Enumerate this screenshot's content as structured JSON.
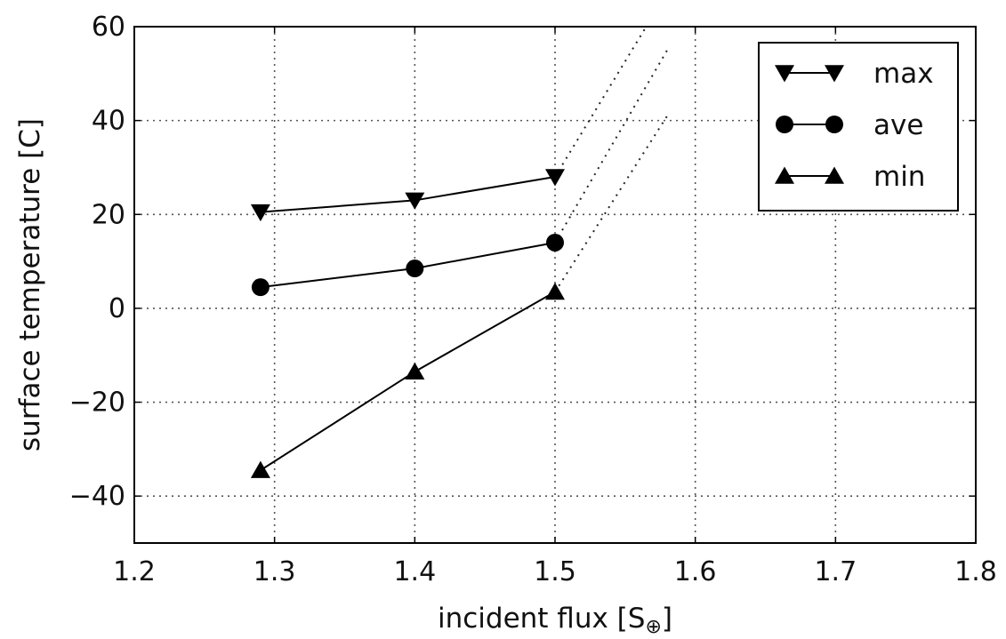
{
  "chart_data": {
    "type": "line",
    "title": "",
    "xlabel": "incident flux [S",
    "xlabel_subscript": "⊕",
    "xlabel_close": "]",
    "ylabel": "surface temperature [C]",
    "xlim": [
      1.2,
      1.8
    ],
    "ylim": [
      -50,
      60
    ],
    "x_ticks": [
      1.2,
      1.3,
      1.4,
      1.5,
      1.6,
      1.7,
      1.8
    ],
    "x_tick_labels": [
      "1.2",
      "1.3",
      "1.4",
      "1.5",
      "1.6",
      "1.7",
      "1.8"
    ],
    "y_ticks": [
      -40,
      -20,
      0,
      20,
      40,
      60
    ],
    "y_tick_labels": [
      "−40",
      "−20",
      "0",
      "20",
      "40",
      "60"
    ],
    "grid": true,
    "grid_style": "dotted",
    "legend_position": "top-right",
    "series": [
      {
        "name": "max",
        "marker": "triangle-down",
        "x": [
          1.29,
          1.4,
          1.5
        ],
        "y": [
          20.5,
          23,
          28
        ]
      },
      {
        "name": "ave",
        "marker": "circle",
        "x": [
          1.29,
          1.4,
          1.5
        ],
        "y": [
          4.5,
          8.5,
          14
        ]
      },
      {
        "name": "min",
        "marker": "triangle-up",
        "x": [
          1.29,
          1.4,
          1.5
        ],
        "y": [
          -34.5,
          -13.5,
          3.5
        ]
      }
    ],
    "extrapolation": [
      {
        "series": "max",
        "style": "dotted",
        "x": [
          1.5,
          1.565
        ],
        "y": [
          28,
          60
        ]
      },
      {
        "series": "ave",
        "style": "dotted",
        "x": [
          1.5,
          1.58
        ],
        "y": [
          14,
          55
        ]
      },
      {
        "series": "min",
        "style": "dotted",
        "x": [
          1.5,
          1.58
        ],
        "y": [
          3.5,
          41
        ]
      }
    ]
  }
}
